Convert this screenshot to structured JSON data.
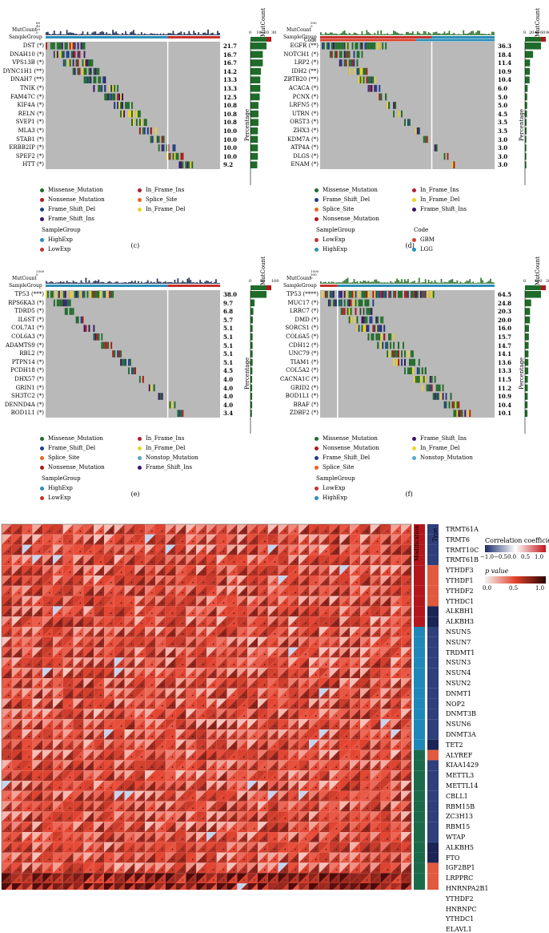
{
  "colors": {
    "missense": "#1f6b2a",
    "nonsense": "#b11818",
    "frame_shift_del": "#1c3f8c",
    "frame_shift_ins": "#3a1466",
    "in_frame_ins": "#b21e2d",
    "in_frame_del": "#ecd22a",
    "splice_site": "#e8641e",
    "nonstop": "#5aa6c7",
    "gray": "#b9b9b9",
    "highexp": "#2b8fb9",
    "lowexp": "#c9302c",
    "gbm": "#d5402b",
    "lgg": "#2b8fb9"
  },
  "panels": [
    {
      "id": "c",
      "tag": "(c)",
      "matcount_label": "MutCount",
      "samplegroup_label": "SampleGroup",
      "code_label": "",
      "side_axis_title": "MutCount",
      "side_ticks": [
        "0",
        "10",
        "20",
        "30"
      ],
      "percentage_label": "Percentage",
      "matcount_ticks": [
        "60",
        "40",
        "20",
        "0"
      ],
      "genes": [
        "DST (*)",
        "DNAH10 (*)",
        "VPS13B (*)",
        "DYNC1H1 (**)",
        "DNAH7 (**)",
        "TNIK (*)",
        "FAM47C (*)",
        "KIF4A (*)",
        "RELN (*)",
        "SVEP1 (*)",
        "MLA3 (*)",
        "STAB1 (*)",
        "ERBB2IP (*)",
        "SPEF2 (*)",
        "HTT (*)"
      ],
      "percents": [
        "21.7",
        "16.7",
        "16.7",
        "14.2",
        "13.3",
        "13.3",
        "12.5",
        "10.8",
        "10.8",
        "10.8",
        "10.0",
        "10.0",
        "10.0",
        "10.0",
        "9.2"
      ],
      "legend": [
        {
          "label": "Missense_Mutation",
          "color": "missense"
        },
        {
          "label": "In_Frame_Ins",
          "color": "in_frame_ins"
        },
        {
          "label": "Nonsense_Mutation",
          "color": "nonsense"
        },
        {
          "label": "Splice_Site",
          "color": "splice_site"
        },
        {
          "label": "Frame_Shift_Del",
          "color": "frame_shift_del"
        },
        {
          "label": "In_Frame_Del",
          "color": "in_frame_del"
        },
        {
          "label": "Frame_Shift_Ins",
          "color": "frame_shift_ins"
        }
      ],
      "group_title": "SampleGroup",
      "groups": [
        {
          "label": "HighExp",
          "color": "highexp"
        },
        {
          "label": "LowExp",
          "color": "lowexp"
        }
      ],
      "code_title": "",
      "codes": []
    },
    {
      "id": "d",
      "tag": "(d)",
      "matcount_label": "MutCount",
      "samplegroup_label": "SampleGroup",
      "code_label": "Code",
      "side_axis_title": "MutCount",
      "side_ticks": [
        "0",
        "20",
        "40",
        "60",
        "80"
      ],
      "percentage_label": "Percentage",
      "matcount_ticks": [
        "500",
        "0"
      ],
      "genes": [
        "EGFR (**)",
        "NOTCH1 (*)",
        "LRP2 (*)",
        "IDH2 (**)",
        "ZBTB20 (**)",
        "ACACA (*)",
        "PCNX (*)",
        "LRFN5 (*)",
        "UTRN (*)",
        "OR5T3 (*)",
        "ZHX3 (*)",
        "KDM7A (*)",
        "ATP4A (*)",
        "DLGS (*)",
        "ENAM (*)"
      ],
      "percents": [
        "36.3",
        "18.4",
        "11.4",
        "10.9",
        "10.4",
        "6.0",
        "5.0",
        "5.0",
        "4.5",
        "3.5",
        "3.5",
        "3.0",
        "3.0",
        "3.0",
        "3.0"
      ],
      "legend": [
        {
          "label": "Missense_Mutation",
          "color": "missense"
        },
        {
          "label": "In_Frame_Ins",
          "color": "in_frame_ins"
        },
        {
          "label": "Frame_Shift_Del",
          "color": "frame_shift_del"
        },
        {
          "label": "In_Frame_Del",
          "color": "in_frame_del"
        },
        {
          "label": "Splice_Site",
          "color": "splice_site"
        },
        {
          "label": "Frame_Shift_Ins",
          "color": "frame_shift_ins"
        },
        {
          "label": "Nonsense_Mutation",
          "color": "nonsense"
        }
      ],
      "group_title": "SampleGroup",
      "groups": [
        {
          "label": "LowExp",
          "color": "lowexp"
        },
        {
          "label": "HighExp",
          "color": "highexp"
        }
      ],
      "code_title": "Code",
      "codes": [
        {
          "label": "GBM",
          "color": "gbm"
        },
        {
          "label": "LGG",
          "color": "lgg"
        }
      ]
    },
    {
      "id": "e",
      "tag": "(e)",
      "matcount_label": "MutCount",
      "samplegroup_label": "SampleGroup",
      "code_label": "",
      "side_axis_title": "MutCount",
      "side_ticks": [
        "0",
        "50",
        "100"
      ],
      "percentage_label": "Percentage",
      "matcount_ticks": [
        "2500",
        "0"
      ],
      "genes": [
        "TP53 (***)",
        "RPS6KA3 (*)",
        "TDRD5 (*)",
        "IL6ST (*)",
        "COL7A1 (*)",
        "COL6A3 (*)",
        "ADAMTS9 (*)",
        "RBL2 (*)",
        "PTPN14 (*)",
        "PCDH18 (*)",
        "DHX57 (*)",
        "GRIN1 (*)",
        "SH3TC2 (*)",
        "DENND4A (*)",
        "BOD1L1 (*)"
      ],
      "percents": [
        "38.0",
        "9.7",
        "6.8",
        "5.7",
        "5.1",
        "5.1",
        "5.1",
        "5.1",
        "5.1",
        "4.5",
        "4.0",
        "4.0",
        "4.0",
        "4.0",
        "3.4"
      ],
      "legend": [
        {
          "label": "Missense_Mutation",
          "color": "missense"
        },
        {
          "label": "In_Frame_Ins",
          "color": "in_frame_ins"
        },
        {
          "label": "Frame_Shift_Del",
          "color": "frame_shift_del"
        },
        {
          "label": "In_Frame_Del",
          "color": "in_frame_del"
        },
        {
          "label": "Splice_Site",
          "color": "splice_site"
        },
        {
          "label": "Nonstop_Mutation",
          "color": "nonstop"
        },
        {
          "label": "Nonsense_Mutation",
          "color": "nonsense"
        },
        {
          "label": "Frame_Shift_Ins",
          "color": "frame_shift_ins"
        }
      ],
      "group_title": "SampleGroup",
      "groups": [
        {
          "label": "HighExp",
          "color": "highexp"
        },
        {
          "label": "LowExp",
          "color": "lowexp"
        }
      ],
      "code_title": "",
      "codes": []
    },
    {
      "id": "f",
      "tag": "(f)",
      "matcount_label": "MutCount",
      "samplegroup_label": "SampleGroup",
      "code_label": "",
      "side_axis_title": "MutCount",
      "side_ticks": [
        "0",
        "100",
        "200"
      ],
      "percentage_label": "Percentage",
      "matcount_ticks": [
        "1500",
        "500",
        "0"
      ],
      "genes": [
        "TP53 (****)",
        "MUC17 (*)",
        "LRRC7 (*)",
        "DMD (*)",
        "SORCS1 (*)",
        "COL6A5 (*)",
        "CDH12 (*)",
        "UNC79 (*)",
        "TIAM1 (*)",
        "COL5A2 (*)",
        "CACNA1C (*)",
        "GRID2 (*)",
        "BOD1L1 (*)",
        "BRAF (*)",
        "ZDBF2 (*)"
      ],
      "percents": [
        "64.5",
        "24.8",
        "20.3",
        "20.0",
        "16.0",
        "15.7",
        "14.7",
        "14.1",
        "13.6",
        "13.3",
        "11.5",
        "11.2",
        "10.9",
        "10.4",
        "10.1"
      ],
      "legend": [
        {
          "label": "Missense_Mutation",
          "color": "missense"
        },
        {
          "label": "Frame_Shift_Ins",
          "color": "frame_shift_ins"
        },
        {
          "label": "Nonsense_Mutation",
          "color": "nonsense"
        },
        {
          "label": "In_Frame_Del",
          "color": "in_frame_del"
        },
        {
          "label": "Frame_Shift_Del",
          "color": "frame_shift_del"
        },
        {
          "label": "Nonstop_Mutation",
          "color": "nonstop"
        },
        {
          "label": "Splice_Site",
          "color": "splice_site"
        }
      ],
      "group_title": "SampleGroup",
      "groups": [
        {
          "label": "LowExp",
          "color": "lowexp"
        },
        {
          "label": "HighExp",
          "color": "highexp"
        }
      ],
      "code_title": "",
      "codes": []
    }
  ],
  "heatmap": {
    "modification_label": "Modification",
    "type_label": "Type",
    "colorbar1_title": "Correlation coefficient",
    "colorbar1_ticks": [
      "−1.0",
      "−0.5",
      "0.0",
      "0.5",
      "1.0"
    ],
    "colorbar2_title": "p value",
    "colorbar2_ticks": [
      "0.0",
      "0.5",
      "1.0"
    ],
    "genes": [
      "TRMT61A",
      "TRMT6",
      "TRMT10C",
      "TRMT61B",
      "YTHDF3",
      "YTHDF1",
      "YTHDF2",
      "YTHDC1",
      "ALKBH1",
      "ALKBH3",
      "NSUN5",
      "NSUN7",
      "TRDMT1",
      "NSUN3",
      "NSUN4",
      "NSUN2",
      "DNMT1",
      "NOP2",
      "DNMT3B",
      "NSUN6",
      "DNMT3A",
      "TET2",
      "ALYREF",
      "KIAA1429",
      "METTL3",
      "METTL14",
      "CBLL1",
      "RBM15B",
      "ZC3H13",
      "RBM15",
      "WTAP",
      "ALKBH5",
      "FTO",
      "IGF2BP1",
      "LRPPRC",
      "HNRNPA2B1",
      "YTHDF2",
      "HNRNPC",
      "YTHDC1",
      "ELAVL1"
    ],
    "modification_colors": [
      "#b3171d",
      "#b3171d",
      "#b3171d",
      "#b3171d",
      "#b3171d",
      "#b3171d",
      "#b3171d",
      "#b3171d",
      "#b3171d",
      "#b3171d",
      "#1f88b8",
      "#1f88b8",
      "#1f88b8",
      "#1f88b8",
      "#1f88b8",
      "#1f88b8",
      "#1f88b8",
      "#1f88b8",
      "#1f88b8",
      "#1f88b8",
      "#1f88b8",
      "#1f88b8",
      "#1b6b4a",
      "#1b6b4a",
      "#1b6b4a",
      "#1b6b4a",
      "#1b6b4a",
      "#1b6b4a",
      "#1b6b4a",
      "#1b6b4a",
      "#1b6b4a",
      "#1b6b4a",
      "#1b6b4a",
      "#1b6b4a",
      "#1b6b4a",
      "#1b6b4a",
      "#1b6b4a",
      "#1b6b4a",
      "#1b6b4a",
      "#1b6b4a"
    ],
    "type_colors": [
      "#2f3f7a",
      "#2f3f7a",
      "#2f3f7a",
      "#2f3f7a",
      "#e05a3f",
      "#e05a3f",
      "#e05a3f",
      "#e05a3f",
      "#1b2454",
      "#1b2454",
      "#2f3f7a",
      "#2f3f7a",
      "#2f3f7a",
      "#2f3f7a",
      "#2f3f7a",
      "#2f3f7a",
      "#2f3f7a",
      "#2f3f7a",
      "#2f3f7a",
      "#2f3f7a",
      "#2f3f7a",
      "#1b2454",
      "#e05a3f",
      "#2f3f7a",
      "#2f3f7a",
      "#2f3f7a",
      "#2f3f7a",
      "#2f3f7a",
      "#2f3f7a",
      "#2f3f7a",
      "#2f3f7a",
      "#1b2454",
      "#1b2454",
      "#e05a3f",
      "#e05a3f",
      "#e05a3f",
      "#e05a3f",
      "#e05a3f",
      "#e05a3f",
      "#e05a3f"
    ]
  },
  "chart_data": [
    {
      "type": "heatmap",
      "title": "",
      "categories": [
        "DST (*)",
        "DNAH10 (*)",
        "VPS13B (*)",
        "DYNC1H1 (**)",
        "DNAH7 (**)",
        "TNIK (*)",
        "FAM47C (*)",
        "KIF4A (*)",
        "RELN (*)",
        "SVEP1 (*)",
        "MLA3 (*)",
        "STAB1 (*)",
        "ERBB2IP (*)",
        "SPEF2 (*)",
        "HTT (*)"
      ],
      "values": [
        21.7,
        16.7,
        16.7,
        14.2,
        13.3,
        13.3,
        12.5,
        10.8,
        10.8,
        10.8,
        10.0,
        10.0,
        10.0,
        10.0,
        9.2
      ]
    },
    {
      "type": "heatmap",
      "title": "",
      "categories": [
        "EGFR (**)",
        "NOTCH1 (*)",
        "LRP2 (*)",
        "IDH2 (**)",
        "ZBTB20 (**)",
        "ACACA (*)",
        "PCNX (*)",
        "LRFN5 (*)",
        "UTRN (*)",
        "OR5T3 (*)",
        "ZHX3 (*)",
        "KDM7A (*)",
        "ATP4A (*)",
        "DLGS (*)",
        "ENAM (*)"
      ],
      "values": [
        36.3,
        18.4,
        11.4,
        10.9,
        10.4,
        6.0,
        5.0,
        5.0,
        4.5,
        3.5,
        3.5,
        3.0,
        3.0,
        3.0,
        3.0
      ]
    },
    {
      "type": "heatmap",
      "title": "",
      "categories": [
        "TP53 (***)",
        "RPS6KA3 (*)",
        "TDRD5 (*)",
        "IL6ST (*)",
        "COL7A1 (*)",
        "COL6A3 (*)",
        "ADAMTS9 (*)",
        "RBL2 (*)",
        "PTPN14 (*)",
        "PCDH18 (*)",
        "DHX57 (*)",
        "GRIN1 (*)",
        "SH3TC2 (*)",
        "DENND4A (*)",
        "BOD1L1 (*)"
      ],
      "values": [
        38.0,
        9.7,
        6.8,
        5.7,
        5.1,
        5.1,
        5.1,
        5.1,
        5.1,
        4.5,
        4.0,
        4.0,
        4.0,
        4.0,
        3.4
      ]
    },
    {
      "type": "heatmap",
      "title": "",
      "categories": [
        "TP53 (****)",
        "MUC17 (*)",
        "LRRC7 (*)",
        "DMD (*)",
        "SORCS1 (*)",
        "COL6A5 (*)",
        "CDH12 (*)",
        "UNC79 (*)",
        "TIAM1 (*)",
        "COL5A2 (*)",
        "CACNA1C (*)",
        "GRID2 (*)",
        "BOD1L1 (*)",
        "BRAF (*)",
        "ZDBF2 (*)"
      ],
      "values": [
        64.5,
        24.8,
        20.3,
        20.0,
        16.0,
        15.7,
        14.7,
        14.1,
        13.6,
        13.3,
        11.5,
        11.2,
        10.9,
        10.4,
        10.1
      ]
    },
    {
      "type": "heatmap",
      "title": "",
      "categories": [
        "TRMT61A",
        "TRMT6",
        "TRMT10C",
        "TRMT61B",
        "YTHDF3",
        "YTHDF1",
        "YTHDF2",
        "YTHDC1",
        "ALKBH1",
        "ALKBH3",
        "NSUN5",
        "NSUN7",
        "TRDMT1",
        "NSUN3",
        "NSUN4",
        "NSUN2",
        "DNMT1",
        "NOP2",
        "DNMT3B",
        "NSUN6",
        "DNMT3A",
        "TET2",
        "ALYREF",
        "KIAA1429",
        "METTL3",
        "METTL14",
        "CBLL1",
        "RBM15B",
        "ZC3H13",
        "RBM15",
        "WTAP",
        "ALKBH5",
        "FTO",
        "IGF2BP1",
        "LRPPRC",
        "HNRNPA2B1",
        "YTHDF2",
        "HNRNPC",
        "YTHDC1",
        "ELAVL1"
      ],
      "xlabel": "",
      "ylabel": "",
      "colorbar": {
        "title": "Correlation coefficient",
        "range": [
          -1,
          1
        ]
      },
      "colorbar_p": {
        "title": "p value",
        "range": [
          0,
          1
        ]
      }
    }
  ]
}
